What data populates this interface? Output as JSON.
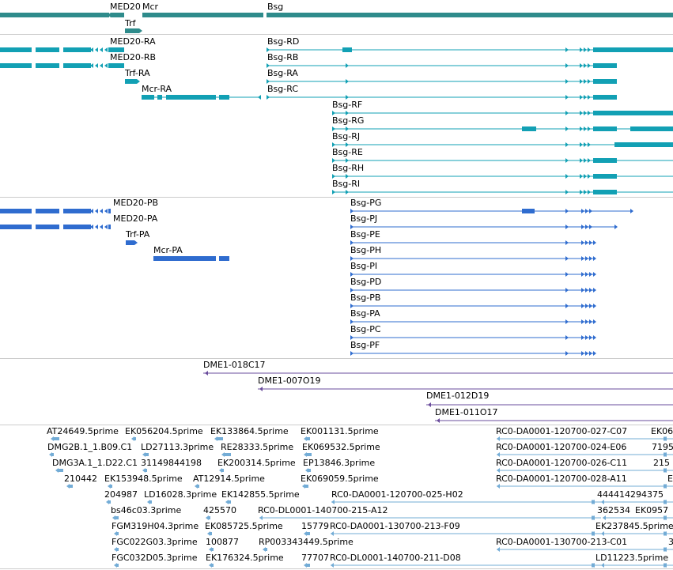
{
  "colors": {
    "gene": "#2e8b8b",
    "transcript": "#12a0b4",
    "protein": "#2f6ccf",
    "clone": "#6a4c9c",
    "est": "#73acd6",
    "separator": "#cccccc"
  },
  "gene_track": {
    "labels": [
      "MED20",
      "Mcr",
      "Bsg",
      "Trf"
    ]
  },
  "transcript_track": {
    "labels": [
      "MED20-RA",
      "MED20-RB",
      "Trf-RA",
      "Mcr-RA",
      "Bsg-RD",
      "Bsg-RB",
      "Bsg-RA",
      "Bsg-RC",
      "Bsg-RF",
      "Bsg-RG",
      "Bsg-RJ",
      "Bsg-RE",
      "Bsg-RH",
      "Bsg-RI"
    ]
  },
  "protein_track": {
    "labels": [
      "MED20-PB",
      "MED20-PA",
      "Trf-PA",
      "Mcr-PA",
      "Bsg-PG",
      "Bsg-PJ",
      "Bsg-PE",
      "Bsg-PH",
      "Bsg-PI",
      "Bsg-PD",
      "Bsg-PB",
      "Bsg-PA",
      "Bsg-PC",
      "Bsg-PF"
    ]
  },
  "clone_track": {
    "labels": [
      "DME1-018C17",
      "DME1-007O19",
      "DME1-012D19",
      "DME1-011O17"
    ]
  },
  "est_track": {
    "labels": [
      "AT24649.5prime",
      "EK056204.5prime",
      "EK133864.5prime",
      "EK001131.5prime",
      "RC0-DA0001-120700-027-C07",
      "EK06",
      "DMG2B.1_1.B09.C1",
      "LD27113.3prime",
      "RE28333.5prime",
      "EK069532.5prime",
      "RC0-DA0001-120700-024-E06",
      "7195",
      "DMG3A.1_1.D22.C1",
      "31149844198",
      "EK200314.5prime",
      "EP13846.3prime",
      "RC0-DA0001-120700-026-C11",
      "215",
      "210442",
      "EK153948.5prime",
      "AT12914.5prime",
      "EK069059.5prime",
      "RC0-DA0001-120700-028-A11",
      "E",
      "204987",
      "LD16028.3prime",
      "EK142855.5prime",
      "RC0-DA0001-120700-025-H02",
      "444414294375",
      "bs46c03.3prime",
      "425570",
      "RC0-DL0001-140700-215-A12",
      "362534",
      "EK0957",
      "FGM319H04.3prime",
      "EK085725.5prime",
      "15779",
      "RC0-DA0001-130700-213-F09",
      "EK237845.5prime",
      "FGC022G03.3prime",
      "100877",
      "RP003343449.5prime",
      "RC0-DA0001-130700-213-C01",
      "3",
      "FGC032D05.3prime",
      "EK176324.5prime",
      "77707",
      "RC0-DL0001-140700-211-D08",
      "LD11223.5prime"
    ]
  }
}
